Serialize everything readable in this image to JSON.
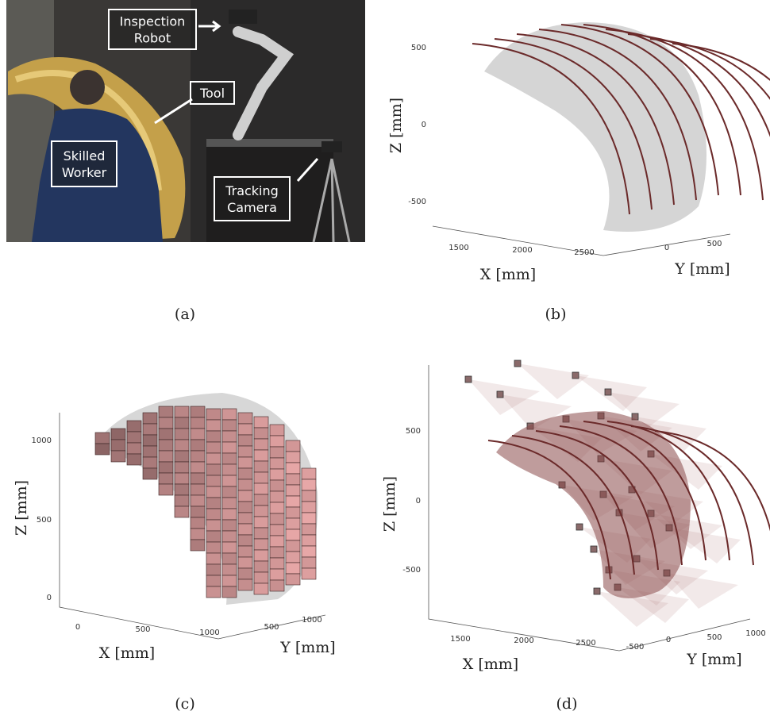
{
  "panels": [
    {
      "caption": "(a)",
      "labels": [
        {
          "lines": [
            "Inspection",
            "Robot"
          ]
        },
        {
          "lines": [
            "Tool"
          ]
        },
        {
          "lines": [
            "Skilled",
            "Worker"
          ]
        },
        {
          "lines": [
            "Tracking",
            "Camera"
          ]
        }
      ]
    },
    {
      "caption": "(b)",
      "x_label": "X [mm]",
      "y_label": "Y [mm]",
      "z_label": "Z [mm]",
      "z_ticks": [
        500,
        0,
        -500
      ],
      "x_ticks": [
        1500,
        2000,
        2500
      ],
      "y_ticks": [
        0,
        500
      ]
    },
    {
      "caption": "(c)",
      "x_label": "X [mm]",
      "y_label": "Y [mm]",
      "z_label": "Z [mm]",
      "z_ticks": [
        1000,
        500,
        0
      ],
      "x_ticks": [
        0,
        500,
        1000
      ],
      "y_ticks": [
        500,
        1000
      ]
    },
    {
      "caption": "(d)",
      "x_label": "X [mm]",
      "y_label": "Y [mm]",
      "z_label": "Z [mm]",
      "z_ticks": [
        500,
        0,
        -500
      ],
      "x_ticks": [
        1500,
        2000,
        2500
      ],
      "y_ticks": [
        -500,
        0,
        500,
        1000
      ]
    }
  ]
}
